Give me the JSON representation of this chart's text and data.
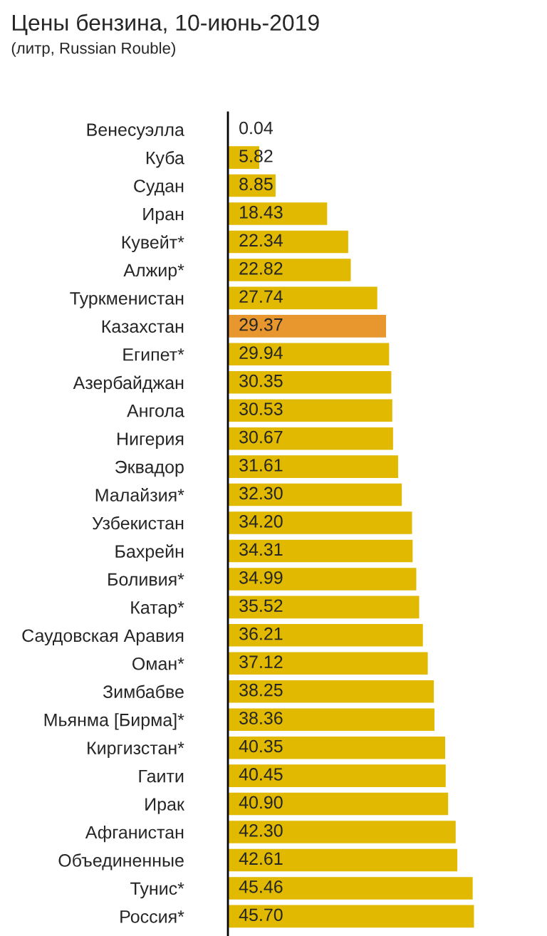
{
  "chart_data": {
    "type": "bar",
    "orientation": "horizontal",
    "title": "Цены бензина, 10-июнь-2019",
    "subtitle": "(литр, Russian Rouble)",
    "categories": [
      "Венесуэлла",
      "Куба",
      "Судан",
      "Иран",
      "Кувейт*",
      "Алжир*",
      "Туркменистан",
      "Казахстан",
      "Египет*",
      "Азербайджан",
      "Ангола",
      "Нигерия",
      "Эквадор",
      "Малайзия*",
      "Узбекистан",
      "Бахрейн",
      "Боливия*",
      "Катар*",
      "Саудовская Аравия",
      "Оман*",
      "Зимбабве",
      "Мьянма [Бирма]*",
      "Киргизстан*",
      "Гаити",
      "Ирак",
      "Афганистан",
      "Объединенные",
      "Тунис*",
      "Россия*"
    ],
    "values": [
      0.04,
      5.82,
      8.85,
      18.43,
      22.34,
      22.82,
      27.74,
      29.37,
      29.94,
      30.35,
      30.53,
      30.67,
      31.61,
      32.3,
      34.2,
      34.31,
      34.99,
      35.52,
      36.21,
      37.12,
      38.25,
      38.36,
      40.35,
      40.45,
      40.9,
      42.3,
      42.61,
      45.46,
      45.7
    ],
    "colors": [
      "#e0b900",
      "#e0b900",
      "#e0b900",
      "#e0b900",
      "#e0b900",
      "#e0b900",
      "#e0b900",
      "#e8962e",
      "#e0b900",
      "#e0b900",
      "#e0b900",
      "#e0b900",
      "#e0b900",
      "#e0b900",
      "#e0b900",
      "#e0b900",
      "#e0b900",
      "#e0b900",
      "#e0b900",
      "#e0b900",
      "#e0b900",
      "#e0b900",
      "#e0b900",
      "#e0b900",
      "#e0b900",
      "#e0b900",
      "#e0b900",
      "#e0b900",
      "#e0b900"
    ],
    "value_labels": [
      "0.04",
      "5.82",
      "8.85",
      "18.43",
      "22.34",
      "22.82",
      "27.74",
      "29.37",
      "29.94",
      "30.35",
      "30.53",
      "30.67",
      "31.61",
      "32.30",
      "34.20",
      "34.31",
      "34.99",
      "35.52",
      "36.21",
      "37.12",
      "38.25",
      "38.36",
      "40.35",
      "40.45",
      "40.90",
      "42.30",
      "42.61",
      "45.46",
      "45.70"
    ]
  }
}
